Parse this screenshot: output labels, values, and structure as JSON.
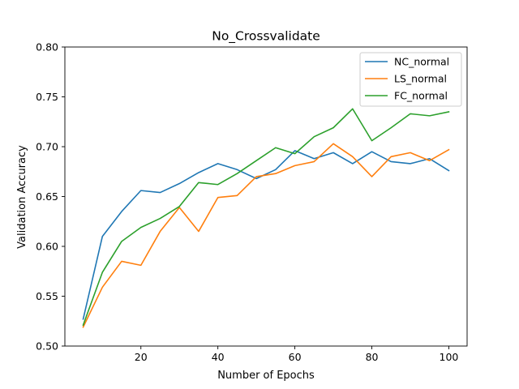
{
  "chart_data": {
    "type": "line",
    "title": "No_Crossvalidate",
    "xlabel": "Number of Epochs",
    "ylabel": "Validation Accuracy",
    "xlim": [
      0.25,
      104.75
    ],
    "ylim": [
      0.5,
      0.8
    ],
    "xticks": [
      20,
      40,
      60,
      80,
      100
    ],
    "yticks": [
      0.5,
      0.55,
      0.6,
      0.65,
      0.7,
      0.75,
      0.8
    ],
    "ytick_labels": [
      "0.50",
      "0.55",
      "0.60",
      "0.65",
      "0.70",
      "0.75",
      "0.80"
    ],
    "grid": false,
    "legend_position": "top-right",
    "x": [
      5,
      10,
      15,
      20,
      25,
      30,
      35,
      40,
      45,
      50,
      55,
      60,
      65,
      70,
      75,
      80,
      85,
      90,
      95,
      100
    ],
    "series": [
      {
        "name": "NC_normal",
        "color": "#1f77b4",
        "values": [
          0.527,
          0.61,
          0.635,
          0.656,
          0.654,
          0.663,
          0.674,
          0.683,
          0.677,
          0.668,
          0.677,
          0.696,
          0.688,
          0.694,
          0.683,
          0.695,
          0.685,
          0.683,
          0.688,
          0.676
        ]
      },
      {
        "name": "LS_normal",
        "color": "#ff7f0e",
        "values": [
          0.519,
          0.559,
          0.585,
          0.581,
          0.615,
          0.639,
          0.615,
          0.649,
          0.651,
          0.67,
          0.673,
          0.681,
          0.685,
          0.703,
          0.69,
          0.67,
          0.69,
          0.694,
          0.686,
          0.697
        ]
      },
      {
        "name": "FC_normal",
        "color": "#2ca02c",
        "values": [
          0.521,
          0.574,
          0.605,
          0.619,
          0.628,
          0.64,
          0.664,
          0.662,
          0.673,
          0.686,
          0.699,
          0.693,
          0.71,
          0.719,
          0.738,
          0.706,
          0.719,
          0.733,
          0.731,
          0.735
        ]
      }
    ]
  }
}
